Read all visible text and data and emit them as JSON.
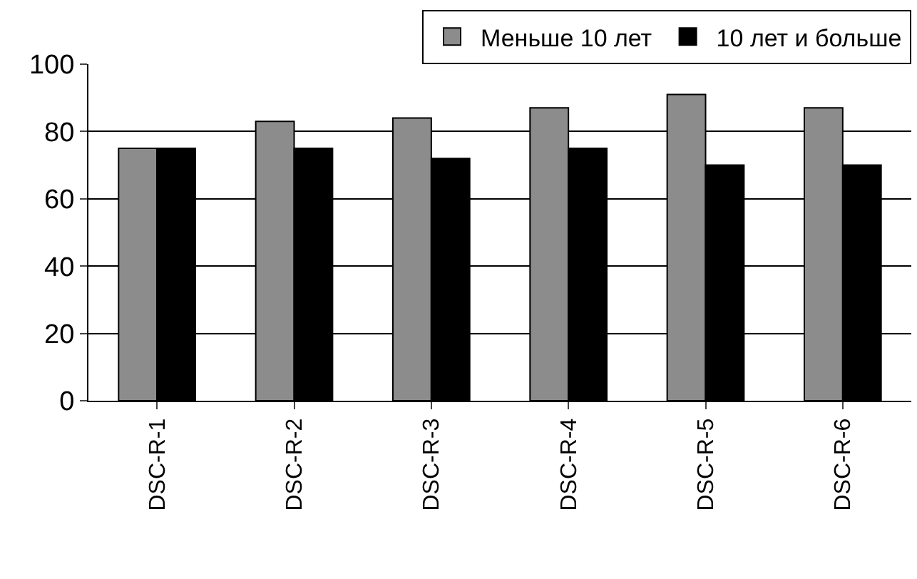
{
  "chart_data": {
    "type": "bar",
    "categories": [
      "DSC-R-1",
      "DSC-R-2",
      "DSC-R-3",
      "DSC-R-4",
      "DSC-R-5",
      "DSC-R-6"
    ],
    "series": [
      {
        "name": "Меньше 10 лет",
        "color": "#8c8c8c",
        "values": [
          75,
          83,
          84,
          87,
          91,
          87
        ]
      },
      {
        "name": "10 лет и больше",
        "color": "#000000",
        "values": [
          75,
          75,
          72,
          75,
          70,
          70
        ]
      }
    ],
    "ylim": [
      0,
      100
    ],
    "yticks": [
      0,
      20,
      40,
      60,
      80,
      100
    ],
    "grid": "y",
    "legend": "top right"
  }
}
